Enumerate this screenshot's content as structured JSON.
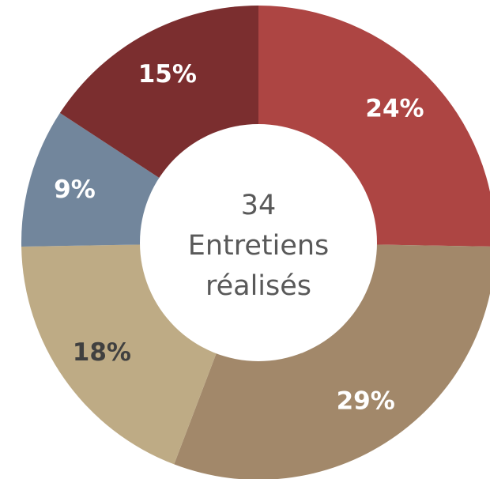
{
  "chart_data": {
    "type": "pie",
    "donut": true,
    "title": "",
    "center_label": {
      "line1": "34",
      "line2": "Entretiens",
      "line3": "réalisés"
    },
    "slices": [
      {
        "value": 24,
        "label": "24%",
        "color": "#ad4543",
        "label_color": "#ffffff"
      },
      {
        "value": 29,
        "label": "29%",
        "color": "#a2886a",
        "label_color": "#ffffff"
      },
      {
        "value": 18,
        "label": "18%",
        "color": "#beab85",
        "label_color": "#404040"
      },
      {
        "value": 9,
        "label": "9%",
        "color": "#72869c",
        "label_color": "#ffffff"
      },
      {
        "value": 15,
        "label": "15%",
        "color": "#7b2e2f",
        "label_color": "#ffffff"
      }
    ]
  }
}
